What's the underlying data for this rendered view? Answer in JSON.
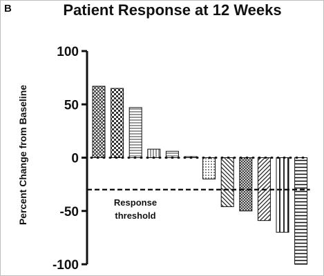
{
  "panel_label": "B",
  "chart_data": {
    "type": "bar",
    "title": "Patient Response at 12 Weeks",
    "xlabel": "",
    "ylabel": "Percent Change from Baseline",
    "ylim": [
      -100,
      100
    ],
    "yticks": [
      100,
      50,
      0,
      -50,
      -100
    ],
    "grid": false,
    "values": [
      67,
      65,
      47,
      8,
      6,
      1,
      -20,
      -46,
      -50,
      -59,
      -70,
      -100
    ],
    "patterns": [
      "crosshatch",
      "checker",
      "horizontal",
      "vertical",
      "horizontal",
      "horizontal",
      "dots",
      "diagonal-left",
      "crosshatch-fine",
      "diagonal-right",
      "vertical-wide",
      "horizontal-wide"
    ],
    "threshold": {
      "value": -30,
      "label_line1": "Response",
      "label_line2": "threshold"
    }
  }
}
